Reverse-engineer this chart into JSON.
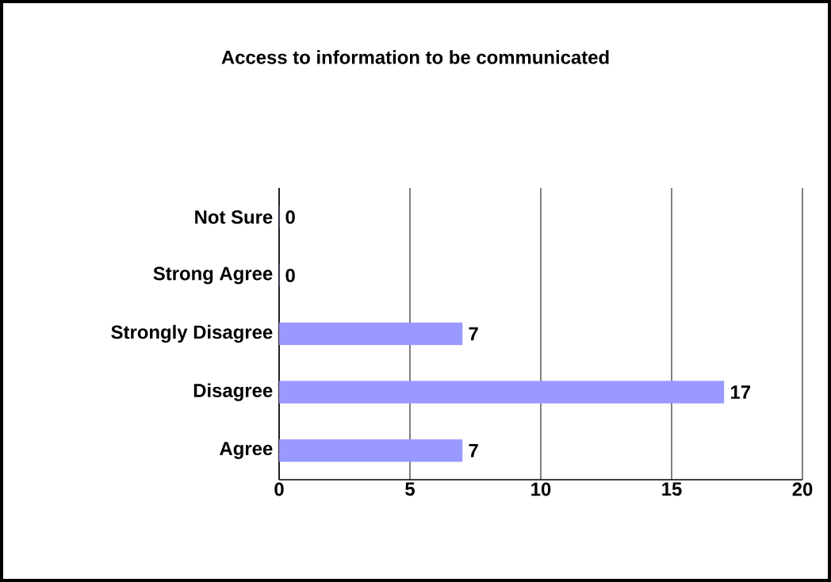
{
  "chart_data": {
    "type": "bar",
    "orientation": "horizontal",
    "title": "Access to information to be communicated",
    "categories": [
      "Not Sure",
      "Strong Agree",
      "Strongly Disagree",
      "Disagree",
      "Agree"
    ],
    "values": [
      0,
      0,
      7,
      17,
      7
    ],
    "color": "#9999ff",
    "xlim": [
      0,
      20
    ],
    "xticks": [
      0,
      5,
      10,
      15,
      20
    ],
    "grid": "x",
    "data_labels": true
  }
}
